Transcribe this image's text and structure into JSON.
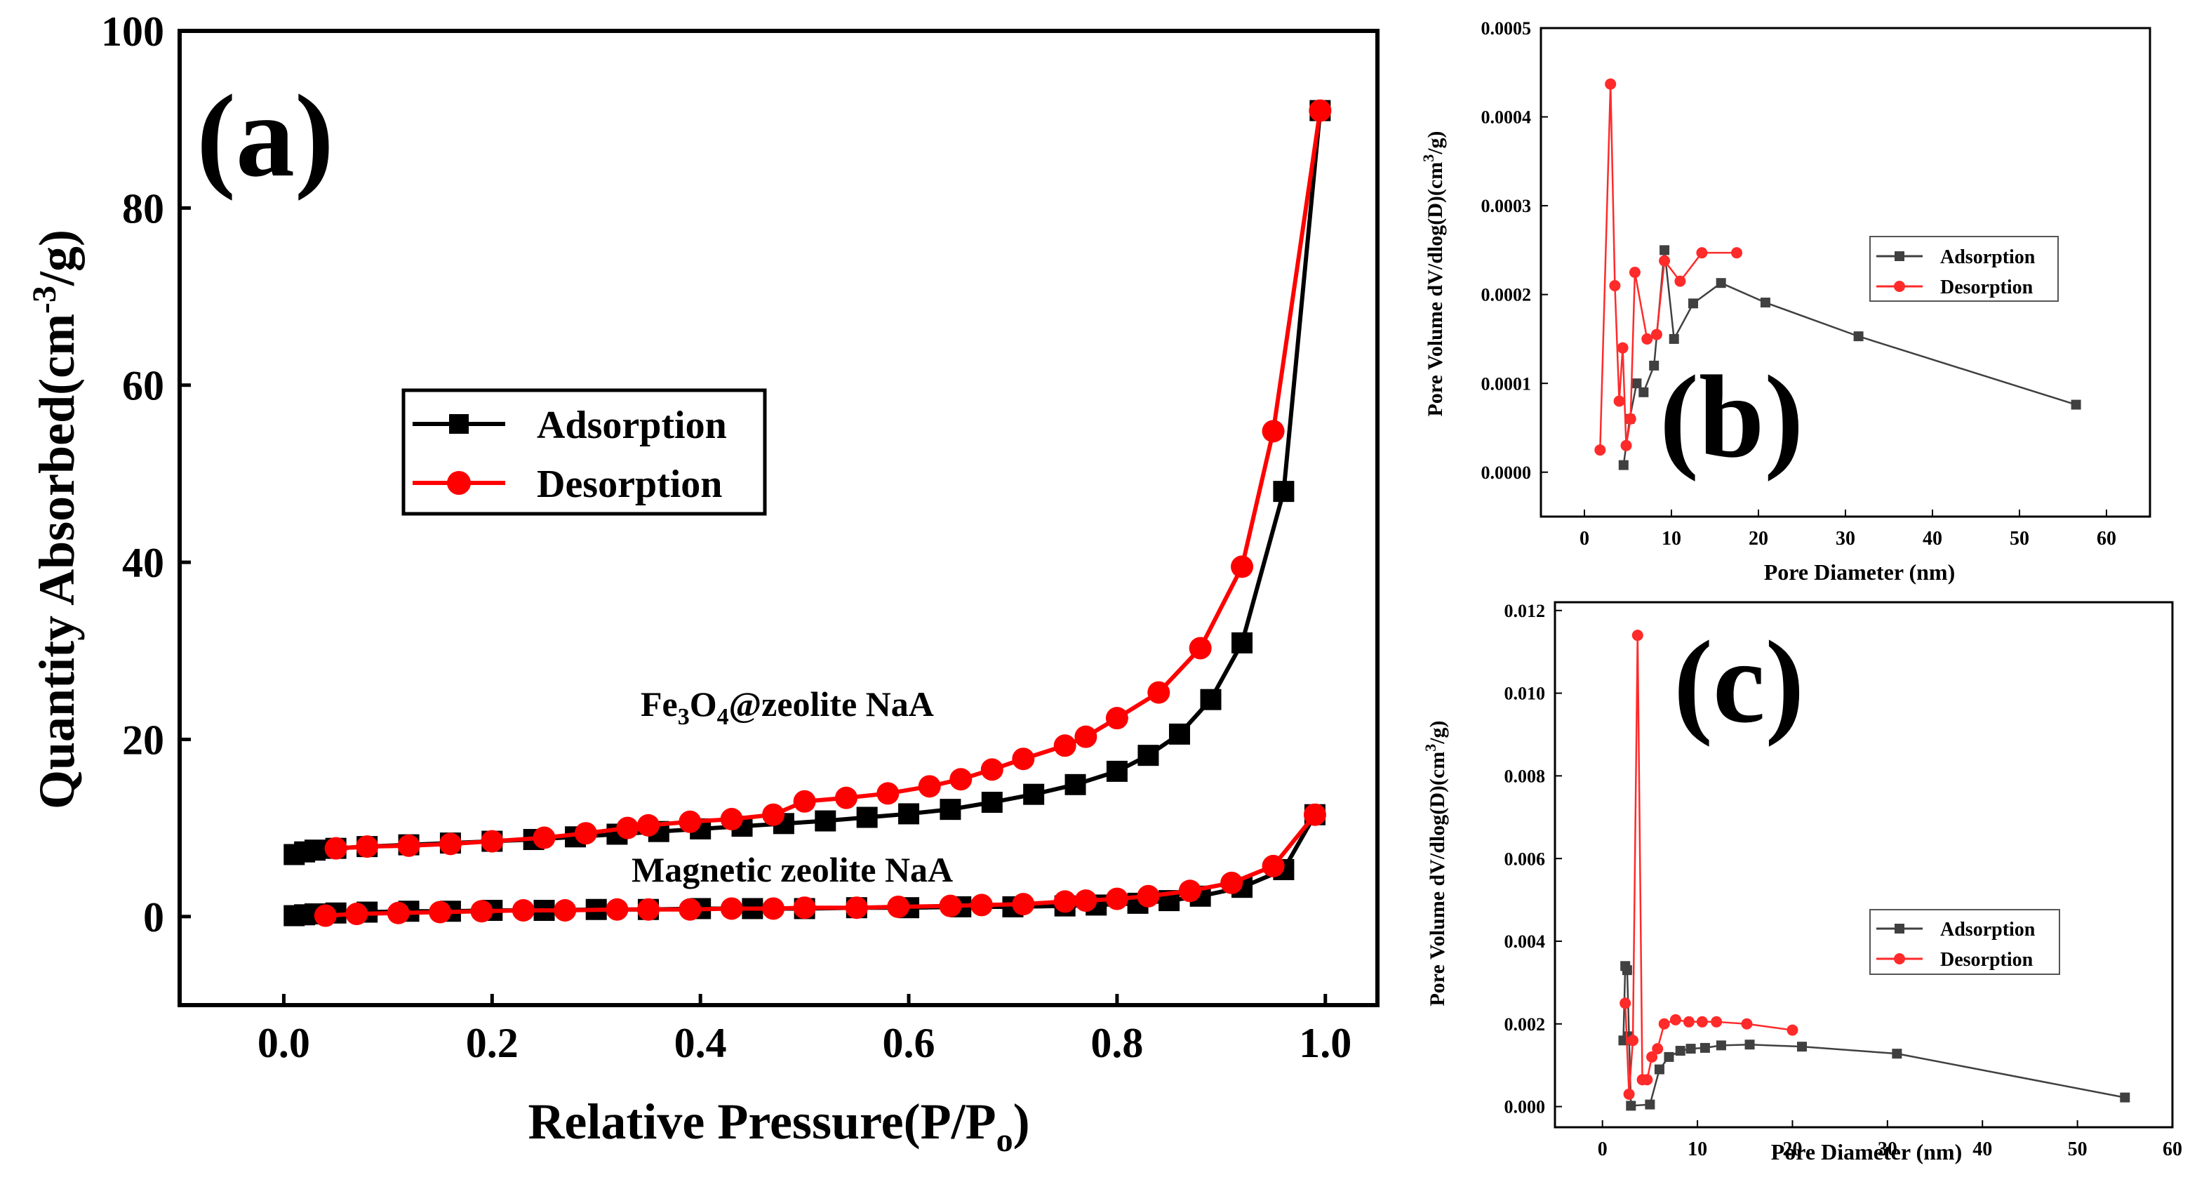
{
  "chart_data": [
    {
      "panel_label": "(a)",
      "type": "line",
      "xlabel_main": "Relative Pressure(P/P",
      "xlabel_sub": "o",
      "xlabel_end": ")",
      "ylabel_main": "Quantity Absorbed(cm",
      "ylabel_sup": "-3",
      "ylabel_end": "/g)",
      "xlim": [
        -0.1,
        1.05
      ],
      "ylim": [
        -10,
        100
      ],
      "xticks": [
        "0.0",
        "0.2",
        "0.4",
        "0.6",
        "0.8",
        "1.0"
      ],
      "xtick_values": [
        0,
        0.2,
        0.4,
        0.6,
        0.8,
        1.0
      ],
      "yticks": [
        "0",
        "20",
        "40",
        "60",
        "80",
        "100"
      ],
      "ytick_values": [
        0,
        20,
        40,
        60,
        80,
        100
      ],
      "legend": {
        "placement": "center-left",
        "entries": [
          "Adsorption",
          "Desorption"
        ]
      },
      "annotations": [
        {
          "parts": [
            "Fe",
            "3",
            "O",
            "4",
            "@zeolite NaA"
          ],
          "x": 0.65,
          "y": 23.5
        },
        {
          "text": "Magnetic zeolite NaA",
          "x": 0.67,
          "y": 5.0
        }
      ],
      "series": [
        {
          "name": "Adsorption",
          "color": "#000000",
          "marker": "square",
          "group": "fe3o4",
          "x": [
            0.01,
            0.02,
            0.03,
            0.05,
            0.08,
            0.12,
            0.16,
            0.2,
            0.24,
            0.28,
            0.32,
            0.36,
            0.4,
            0.44,
            0.48,
            0.52,
            0.56,
            0.6,
            0.64,
            0.68,
            0.72,
            0.76,
            0.8,
            0.83,
            0.86,
            0.89,
            0.92,
            0.96,
            0.995
          ],
          "y": [
            7.0,
            7.3,
            7.5,
            7.7,
            7.9,
            8.1,
            8.3,
            8.5,
            8.7,
            9.0,
            9.3,
            9.6,
            9.9,
            10.2,
            10.5,
            10.8,
            11.2,
            11.6,
            12.1,
            12.9,
            13.8,
            14.9,
            16.4,
            18.2,
            20.6,
            24.5,
            30.9,
            48.0,
            91.0
          ]
        },
        {
          "name": "Desorption",
          "color": "#ff0000",
          "marker": "circle",
          "group": "fe3o4",
          "x": [
            0.995,
            0.95,
            0.92,
            0.88,
            0.84,
            0.8,
            0.77,
            0.75,
            0.71,
            0.68,
            0.65,
            0.62,
            0.58,
            0.54,
            0.5,
            0.47,
            0.43,
            0.39,
            0.35,
            0.33,
            0.29,
            0.25,
            0.2,
            0.16,
            0.12,
            0.08,
            0.05
          ],
          "y": [
            91.0,
            54.8,
            39.5,
            30.3,
            25.3,
            22.4,
            20.3,
            19.3,
            17.8,
            16.6,
            15.5,
            14.7,
            13.9,
            13.4,
            13.0,
            11.5,
            11.0,
            10.7,
            10.3,
            10.0,
            9.4,
            8.9,
            8.5,
            8.2,
            8.0,
            7.9,
            7.7
          ]
        },
        {
          "name": "Adsorption",
          "color": "#000000",
          "marker": "square",
          "group": "magnetic",
          "x": [
            0.01,
            0.02,
            0.03,
            0.05,
            0.08,
            0.12,
            0.16,
            0.2,
            0.25,
            0.3,
            0.35,
            0.4,
            0.45,
            0.5,
            0.55,
            0.6,
            0.65,
            0.7,
            0.75,
            0.78,
            0.82,
            0.85,
            0.88,
            0.92,
            0.96,
            0.99
          ],
          "y": [
            0.1,
            0.2,
            0.3,
            0.4,
            0.5,
            0.6,
            0.6,
            0.7,
            0.7,
            0.8,
            0.8,
            0.9,
            0.9,
            0.9,
            1.0,
            1.0,
            1.1,
            1.1,
            1.2,
            1.3,
            1.5,
            1.8,
            2.3,
            3.3,
            5.3,
            11.5
          ]
        },
        {
          "name": "Desorption",
          "color": "#ff0000",
          "marker": "circle",
          "group": "magnetic",
          "x": [
            0.99,
            0.95,
            0.91,
            0.87,
            0.83,
            0.8,
            0.77,
            0.75,
            0.71,
            0.67,
            0.64,
            0.59,
            0.55,
            0.5,
            0.47,
            0.43,
            0.39,
            0.35,
            0.32,
            0.27,
            0.23,
            0.19,
            0.15,
            0.11,
            0.07,
            0.04
          ],
          "y": [
            11.5,
            5.7,
            3.8,
            2.9,
            2.3,
            2.0,
            1.8,
            1.7,
            1.4,
            1.3,
            1.2,
            1.1,
            1.0,
            1.0,
            0.9,
            0.9,
            0.8,
            0.8,
            0.8,
            0.7,
            0.7,
            0.6,
            0.5,
            0.4,
            0.3,
            0.1
          ]
        }
      ]
    },
    {
      "panel_label": "(b)",
      "type": "line",
      "xlabel": "Pore Diameter (nm)",
      "ylabel_main": "Pore Volume dV/dlog(D)(cm",
      "ylabel_sup": "3",
      "ylabel_end": "/g)",
      "xlim": [
        -5,
        65
      ],
      "ylim": [
        -5e-05,
        0.0005
      ],
      "xticks": [
        "0",
        "10",
        "20",
        "30",
        "40",
        "50",
        "60"
      ],
      "xtick_values": [
        0,
        10,
        20,
        30,
        40,
        50,
        60
      ],
      "yticks": [
        "0.0000",
        "0.0001",
        "0.0002",
        "0.0003",
        "0.0004",
        "0.0005"
      ],
      "ytick_values": [
        0,
        0.0001,
        0.0002,
        0.0003,
        0.0004,
        0.0005
      ],
      "legend": {
        "placement": "right",
        "entries": [
          "Adsorption",
          "Desorption"
        ]
      },
      "series": [
        {
          "name": "Adsorption",
          "color": "#404040",
          "marker": "square",
          "x": [
            4.5,
            5.2,
            6.0,
            6.8,
            8.0,
            9.2,
            10.3,
            12.5,
            15.7,
            20.8,
            31.5,
            56.5
          ],
          "y": [
            8e-06,
            6e-05,
            0.0001,
            9e-05,
            0.00012,
            0.00025,
            0.00015,
            0.00019,
            0.000213,
            0.000191,
            0.000153,
            7.6e-05
          ]
        },
        {
          "name": "Desorption",
          "color": "#ff2a2a",
          "marker": "circle",
          "x": [
            1.8,
            3.0,
            3.5,
            4.0,
            4.4,
            4.8,
            5.3,
            5.8,
            7.2,
            8.3,
            9.2,
            11.0,
            13.5,
            17.5
          ],
          "y": [
            2.5e-05,
            0.000437,
            0.00021,
            8e-05,
            0.00014,
            3e-05,
            6e-05,
            0.000225,
            0.00015,
            0.000155,
            0.000238,
            0.000215,
            0.000247,
            0.000247
          ]
        }
      ]
    },
    {
      "panel_label": "(c)",
      "type": "line",
      "xlabel": "Pore Diameter (nm)",
      "ylabel_main": "Pore Volume dV/dlog(D)(cm",
      "ylabel_sup": "3",
      "ylabel_end": "/g)",
      "xlim": [
        -5,
        60
      ],
      "ylim": [
        -0.0005,
        0.0122
      ],
      "xticks": [
        "0",
        "10",
        "20",
        "30",
        "40",
        "50",
        "60"
      ],
      "xtick_values": [
        0,
        10,
        20,
        30,
        40,
        50,
        60
      ],
      "yticks": [
        "0.000",
        "0.002",
        "0.004",
        "0.006",
        "0.008",
        "0.010",
        "0.012"
      ],
      "ytick_values": [
        0,
        0.002,
        0.004,
        0.006,
        0.008,
        0.01,
        0.012
      ],
      "legend": {
        "placement": "right",
        "entries": [
          "Adsorption",
          "Desorption"
        ]
      },
      "series": [
        {
          "name": "Adsorption",
          "color": "#404040",
          "marker": "square",
          "x": [
            2.2,
            2.4,
            2.6,
            2.8,
            3.0,
            5.0,
            6.0,
            7.0,
            8.2,
            9.3,
            10.8,
            12.5,
            15.5,
            21.0,
            31.0,
            55.0
          ],
          "y": [
            0.0016,
            0.0034,
            0.0033,
            0.0017,
            2e-05,
            5e-05,
            0.0009,
            0.0012,
            0.00135,
            0.0014,
            0.00142,
            0.00148,
            0.0015,
            0.00145,
            0.00128,
            0.00022
          ]
        },
        {
          "name": "Desorption",
          "color": "#ff2a2a",
          "marker": "circle",
          "x": [
            2.4,
            2.8,
            3.2,
            3.7,
            4.2,
            4.7,
            5.2,
            5.8,
            6.5,
            7.7,
            9.1,
            10.5,
            12.0,
            15.2,
            20.0
          ],
          "y": [
            0.0025,
            0.0003,
            0.0016,
            0.0114,
            0.00065,
            0.00065,
            0.0012,
            0.0014,
            0.002,
            0.0021,
            0.00205,
            0.00205,
            0.00205,
            0.002,
            0.00185
          ]
        }
      ]
    }
  ]
}
